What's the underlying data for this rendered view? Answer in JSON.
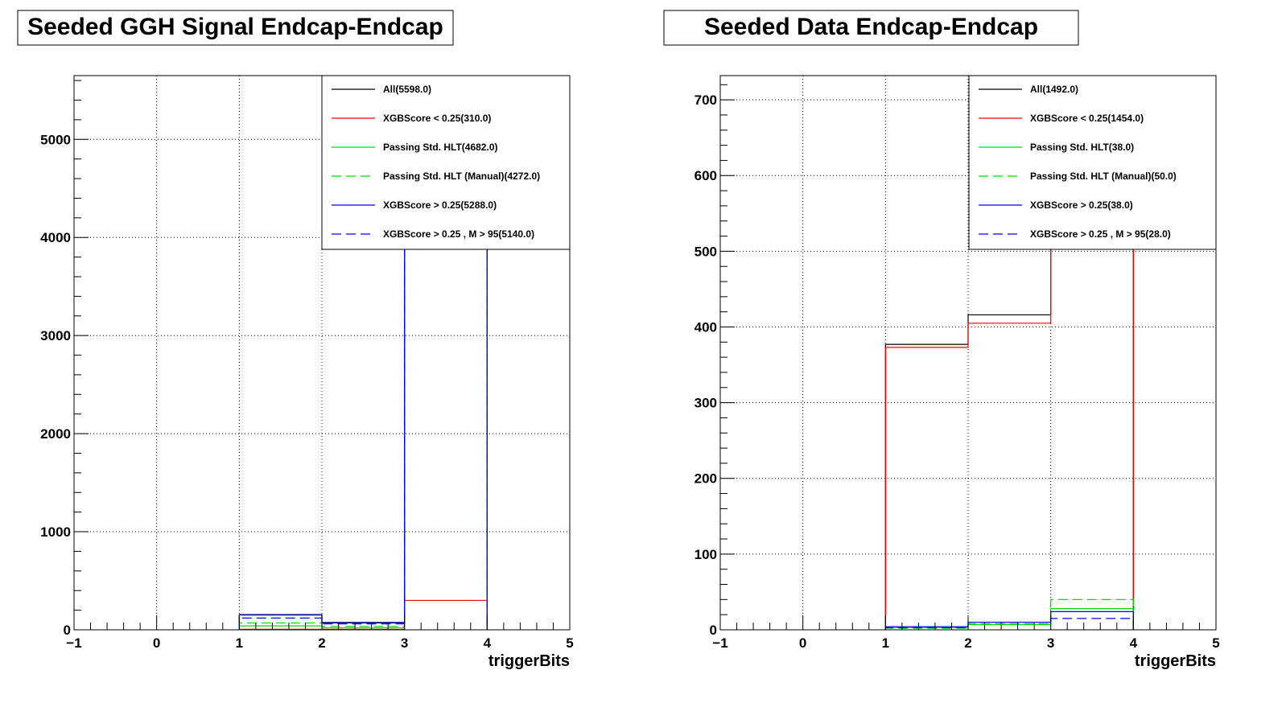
{
  "chart_data": [
    {
      "type": "histogram",
      "title": "Seeded GGH Signal Endcap-Endcap",
      "xlabel": "triggerBits",
      "ylabel": "",
      "xlim": [
        -1,
        5
      ],
      "ylim": [
        0,
        5650
      ],
      "x_ticks": [
        -1,
        0,
        1,
        2,
        3,
        4,
        5
      ],
      "x_tick_labels": [
        "−1",
        "0",
        "1",
        "2",
        "3",
        "4",
        "5"
      ],
      "y_ticks": [
        0,
        1000,
        2000,
        3000,
        4000,
        5000
      ],
      "y_tick_labels": [
        "0",
        "1000",
        "2000",
        "3000",
        "4000",
        "5000"
      ],
      "grid": true,
      "legend_position": "top-right",
      "bin_edges": [
        1,
        2,
        3,
        4
      ],
      "series": [
        {
          "name": "All(5598.0)",
          "color": "#000000",
          "style": "solid",
          "values": [
            155,
            75,
            5368
          ]
        },
        {
          "name": "XGBScore < 0.25(310.0)",
          "color": "#ff0000",
          "style": "solid",
          "values": [
            5,
            5,
            300
          ]
        },
        {
          "name": "Passing Std. HLT(4682.0)",
          "color": "#00dd00",
          "style": "solid",
          "values": [
            40,
            20,
            4622
          ]
        },
        {
          "name": "Passing Std. HLT (Manual)(4272.0)",
          "color": "#00dd00",
          "style": "dashed",
          "values": [
            70,
            35,
            4167
          ]
        },
        {
          "name": "XGBScore > 0.25(5288.0)",
          "color": "#0000ff",
          "style": "solid",
          "values": [
            150,
            70,
            5068
          ]
        },
        {
          "name": "XGBScore > 0.25 , M > 95(5140.0)",
          "color": "#0000ff",
          "style": "dashed",
          "values": [
            120,
            60,
            4960
          ]
        }
      ]
    },
    {
      "type": "histogram",
      "title": "Seeded Data Endcap-Endcap",
      "xlabel": "triggerBits",
      "ylabel": "",
      "xlim": [
        -1,
        5
      ],
      "ylim": [
        0,
        732
      ],
      "x_ticks": [
        -1,
        0,
        1,
        2,
        3,
        4,
        5
      ],
      "x_tick_labels": [
        "−1",
        "0",
        "1",
        "2",
        "3",
        "4",
        "5"
      ],
      "y_ticks": [
        0,
        100,
        200,
        300,
        400,
        500,
        600,
        700
      ],
      "y_tick_labels": [
        "0",
        "100",
        "200",
        "300",
        "400",
        "500",
        "600",
        "700"
      ],
      "grid": true,
      "legend_position": "top-right",
      "bin_edges": [
        1,
        2,
        3,
        4
      ],
      "series": [
        {
          "name": "All(1492.0)",
          "color": "#000000",
          "style": "solid",
          "values": [
            377,
            416,
            699
          ]
        },
        {
          "name": "XGBScore < 0.25(1454.0)",
          "color": "#ff0000",
          "style": "solid",
          "values": [
            373,
            405,
            676
          ]
        },
        {
          "name": "Passing Std. HLT(38.0)",
          "color": "#00dd00",
          "style": "solid",
          "values": [
            3,
            7,
            28
          ]
        },
        {
          "name": "Passing Std. HLT (Manual)(50.0)",
          "color": "#00dd00",
          "style": "dashed",
          "values": [
            2,
            8,
            40
          ]
        },
        {
          "name": "XGBScore > 0.25(38.0)",
          "color": "#0000ff",
          "style": "solid",
          "values": [
            4,
            10,
            24
          ]
        },
        {
          "name": "XGBScore > 0.25 , M > 95(28.0)",
          "color": "#0000ff",
          "style": "dashed",
          "values": [
            3,
            10,
            15
          ]
        }
      ]
    }
  ]
}
